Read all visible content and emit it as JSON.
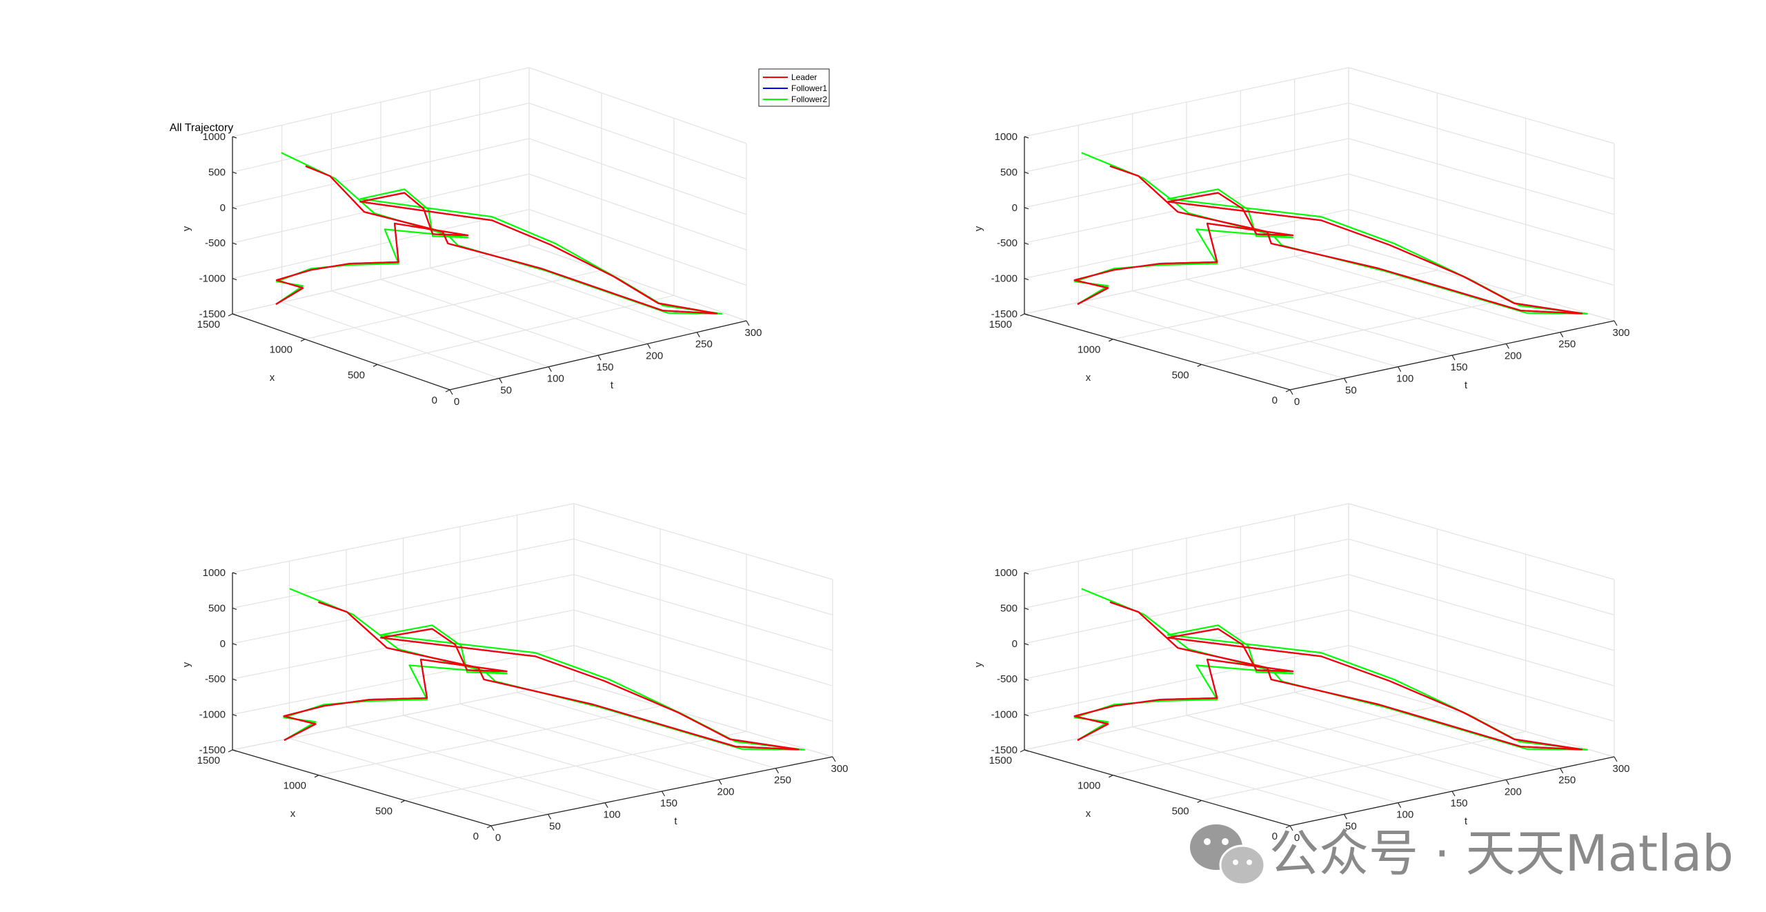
{
  "figure": {
    "watermark": "公众号 · 天天Matlab"
  },
  "colors": {
    "leader": "#ff0000",
    "follower1": "#0000ff",
    "follower2": "#00ff00",
    "grid": "#e3e3e3",
    "axis": "#262626"
  },
  "chart_data": [
    {
      "type": "line3d",
      "title": "All Trajectory",
      "xlabel": "t",
      "ylabel": "x",
      "zlabel": "y",
      "t_ticks": [
        "0",
        "50",
        "100",
        "150",
        "200",
        "250",
        "300"
      ],
      "x_ticks": [
        "0",
        "500",
        "1000",
        "1500"
      ],
      "y_ticks": [
        "-1500",
        "-1000",
        "-500",
        "0",
        "500",
        "1000"
      ],
      "tlim": [
        0,
        300
      ],
      "xlim": [
        0,
        1500
      ],
      "ylim": [
        -1500,
        1000
      ],
      "grid": true,
      "legend": {
        "placement": "top-right",
        "entries": [
          "Leader",
          "Follower1",
          "Follower2"
        ]
      }
    },
    {
      "type": "line3d",
      "title": "",
      "xlabel": "t",
      "ylabel": "x",
      "zlabel": "y",
      "t_ticks": [
        "0",
        "50",
        "100",
        "150",
        "200",
        "250",
        "300"
      ],
      "x_ticks": [
        "0",
        "500",
        "1000",
        "1500"
      ],
      "y_ticks": [
        "-1500",
        "-1000",
        "-500",
        "0",
        "500",
        "1000"
      ],
      "tlim": [
        0,
        300
      ],
      "xlim": [
        0,
        1500
      ],
      "ylim": [
        -1500,
        1000
      ],
      "grid": true
    },
    {
      "type": "line3d",
      "title": "",
      "xlabel": "t",
      "ylabel": "x",
      "zlabel": "y",
      "t_ticks": [
        "0",
        "50",
        "100",
        "150",
        "200",
        "250",
        "300"
      ],
      "x_ticks": [
        "0",
        "500",
        "1000",
        "1500"
      ],
      "y_ticks": [
        "-1500",
        "-1000",
        "-500",
        "0",
        "500",
        "1000"
      ],
      "tlim": [
        0,
        300
      ],
      "xlim": [
        0,
        1500
      ],
      "ylim": [
        -1500,
        1000
      ],
      "grid": true
    },
    {
      "type": "line3d",
      "title": "",
      "xlabel": "t",
      "ylabel": "x",
      "zlabel": "y",
      "t_ticks": [
        "0",
        "50",
        "100",
        "150",
        "200",
        "250",
        "300"
      ],
      "x_ticks": [
        "0",
        "500",
        "1000",
        "1500"
      ],
      "y_ticks": [
        "-1500",
        "-1000",
        "-500",
        "0",
        "500",
        "1000"
      ],
      "tlim": [
        0,
        300
      ],
      "xlim": [
        0,
        1500
      ],
      "ylim": [
        -1500,
        1000
      ],
      "grid": true
    }
  ],
  "trajectories": {
    "leader": [
      [
        0,
        1200,
        -1150
      ],
      [
        20,
        1150,
        -950
      ],
      [
        30,
        1400,
        -1050
      ],
      [
        50,
        1300,
        -900
      ],
      [
        60,
        1100,
        -700
      ],
      [
        80,
        900,
        -600
      ],
      [
        120,
        1200,
        -400
      ],
      [
        150,
        900,
        -450
      ],
      [
        100,
        800,
        -200
      ],
      [
        120,
        1000,
        -50
      ],
      [
        130,
        1200,
        0
      ],
      [
        100,
        1300,
        -100
      ],
      [
        160,
        800,
        -200
      ],
      [
        190,
        600,
        -500
      ],
      [
        210,
        300,
        -800
      ],
      [
        240,
        200,
        -1200
      ],
      [
        270,
        0,
        -1300
      ],
      [
        230,
        100,
        -1200
      ],
      [
        180,
        600,
        -800
      ],
      [
        130,
        900,
        -500
      ],
      [
        110,
        800,
        -200
      ],
      [
        60,
        1000,
        100
      ],
      [
        40,
        1100,
        600
      ],
      [
        30,
        1200,
        700
      ]
    ],
    "follower2": [
      [
        0,
        1200,
        -1150
      ],
      [
        20,
        1150,
        -920
      ],
      [
        30,
        1400,
        -1070
      ],
      [
        50,
        1300,
        -880
      ],
      [
        60,
        1100,
        -720
      ],
      [
        80,
        900,
        -620
      ],
      [
        110,
        1200,
        -450
      ],
      [
        150,
        900,
        -480
      ],
      [
        100,
        800,
        -230
      ],
      [
        125,
        1000,
        -80
      ],
      [
        130,
        1200,
        50
      ],
      [
        100,
        1300,
        -60
      ],
      [
        160,
        800,
        -150
      ],
      [
        195,
        600,
        -500
      ],
      [
        215,
        300,
        -850
      ],
      [
        245,
        200,
        -1250
      ],
      [
        275,
        0,
        -1320
      ],
      [
        235,
        100,
        -1250
      ],
      [
        185,
        600,
        -850
      ],
      [
        140,
        900,
        -560
      ],
      [
        115,
        800,
        -260
      ],
      [
        70,
        1000,
        50
      ],
      [
        45,
        1100,
        550
      ],
      [
        20,
        1300,
        850
      ]
    ]
  }
}
